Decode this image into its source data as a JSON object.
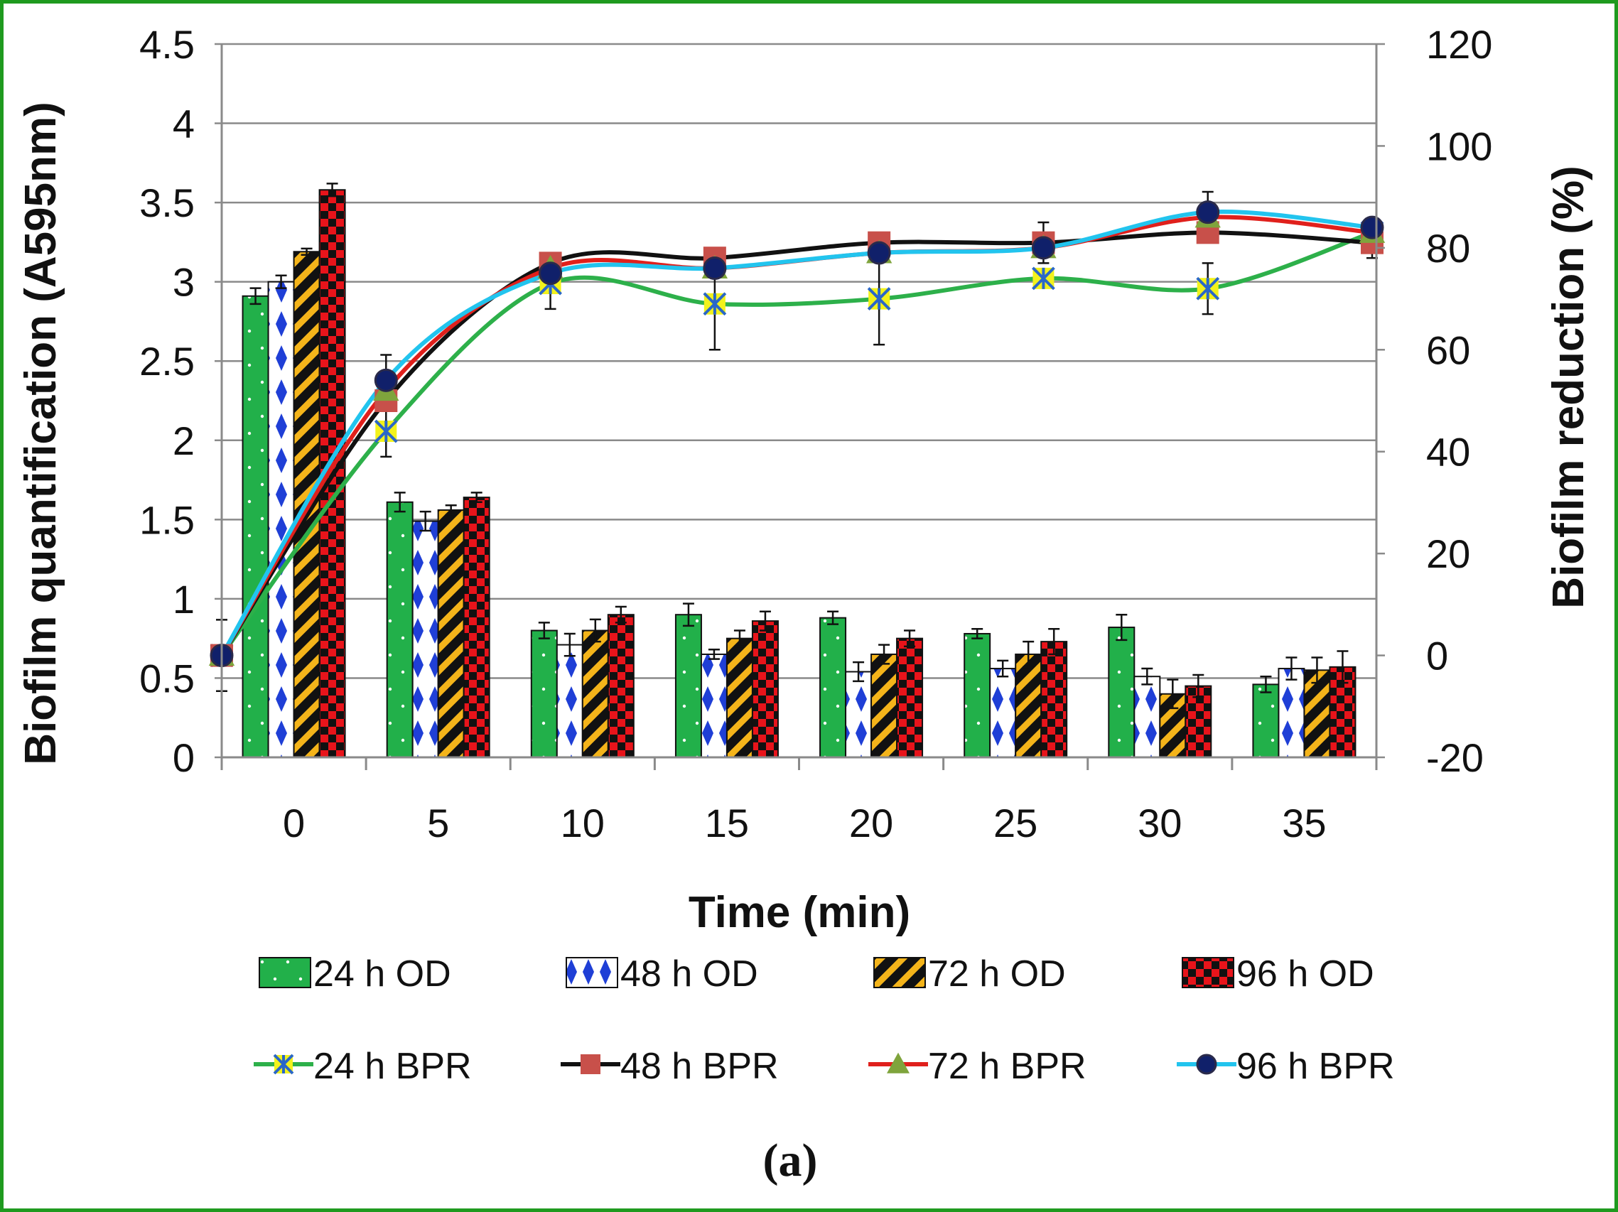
{
  "chart_data": {
    "type": "bar",
    "panel_label": "(a)",
    "xlabel": "Time (min)",
    "ylabel": "Biofilm quantification (A595nm)",
    "y2label": "Biofilm  reduction (%)",
    "categories": [
      "0",
      "5",
      "10",
      "15",
      "20",
      "25",
      "30",
      "35"
    ],
    "ylim": [
      0,
      4.5
    ],
    "y_ticks": [
      "0",
      "0.5",
      "1",
      "1.5",
      "2",
      "2.5",
      "3",
      "3.5",
      "4",
      "4.5"
    ],
    "y2lim": [
      -20,
      120
    ],
    "y2_ticks": [
      "-20",
      "0",
      "20",
      "40",
      "60",
      "80",
      "100",
      "120"
    ],
    "grid": true,
    "legend_position": "bottom",
    "bar_series": [
      {
        "name": "24 h OD",
        "color": "#22b04a",
        "pattern": "dots",
        "values": [
          2.91,
          1.61,
          0.8,
          0.9,
          0.88,
          0.78,
          0.82,
          0.46
        ],
        "errors": [
          0.05,
          0.06,
          0.05,
          0.07,
          0.04,
          0.03,
          0.08,
          0.05
        ]
      },
      {
        "name": "48 h OD",
        "color": "#1f3fd6",
        "pattern": "diamonds",
        "values": [
          3.0,
          1.49,
          0.71,
          0.65,
          0.54,
          0.56,
          0.51,
          0.56
        ],
        "errors": [
          0.04,
          0.06,
          0.07,
          0.03,
          0.06,
          0.05,
          0.05,
          0.07
        ]
      },
      {
        "name": "72 h OD",
        "color": "#f4b41a",
        "pattern": "stripes",
        "values": [
          3.19,
          1.56,
          0.8,
          0.75,
          0.65,
          0.65,
          0.4,
          0.55
        ],
        "errors": [
          0.02,
          0.03,
          0.07,
          0.05,
          0.06,
          0.08,
          0.09,
          0.08
        ]
      },
      {
        "name": "96 h OD",
        "color": "#e8141b",
        "pattern": "checker",
        "values": [
          3.58,
          1.64,
          0.9,
          0.86,
          0.75,
          0.73,
          0.45,
          0.57
        ],
        "errors": [
          0.04,
          0.03,
          0.05,
          0.06,
          0.05,
          0.08,
          0.07,
          0.1
        ]
      }
    ],
    "line_series": [
      {
        "name": "24 h BPR",
        "color": "#2db04a",
        "marker": "x-star",
        "marker_fill": "#f2f21c",
        "marker_stroke": "#2a67c8",
        "values": [
          0,
          44,
          73,
          69,
          70,
          74,
          72,
          83
        ],
        "errors": [
          7,
          5,
          5,
          9,
          9,
          0,
          5,
          2
        ]
      },
      {
        "name": "48 h BPR",
        "color": "#111111",
        "marker": "square",
        "marker_fill": "#c8504a",
        "marker_stroke": "#c8504a",
        "values": [
          0,
          50,
          77,
          78,
          81,
          81,
          83,
          81
        ],
        "errors": [
          0,
          0,
          2,
          2,
          2,
          4,
          0,
          3
        ]
      },
      {
        "name": "72 h BPR",
        "color": "#e0201c",
        "marker": "triangle",
        "marker_fill": "#7fa43c",
        "marker_stroke": "#7fa43c",
        "values": [
          0,
          52,
          76,
          76,
          79,
          80,
          86,
          83
        ],
        "errors": [
          0,
          0,
          0,
          0,
          0,
          0,
          0,
          0
        ]
      },
      {
        "name": "96 h BPR",
        "color": "#22c4ee",
        "marker": "circle",
        "marker_fill": "#10206a",
        "marker_stroke": "#2a2a4a",
        "values": [
          0,
          54,
          75,
          76,
          79,
          80,
          87,
          84
        ],
        "errors": [
          0,
          5,
          0,
          0,
          0,
          0,
          4,
          0
        ]
      }
    ]
  }
}
